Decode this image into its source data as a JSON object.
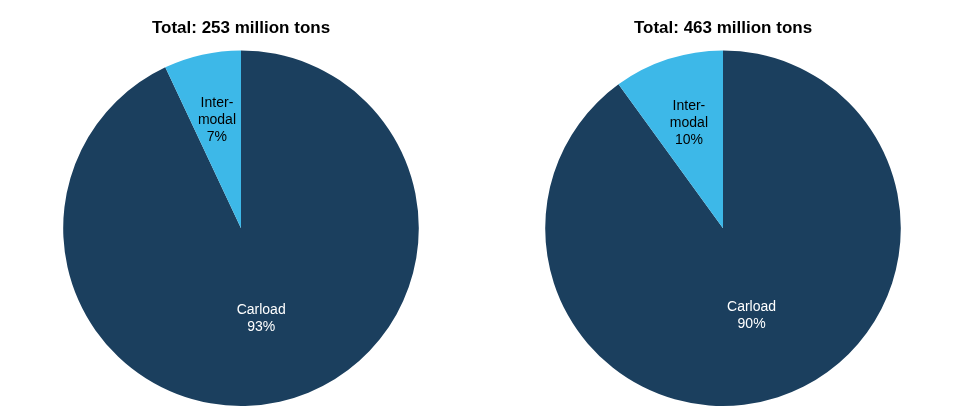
{
  "chart_data": [
    {
      "type": "pie",
      "title": "Total: 253 million tons",
      "values": [
        93,
        7
      ],
      "value_labels": [
        "Carload\n93%",
        "Inter-\nmodal\n7%"
      ],
      "colors": [
        "#1b3f5e",
        "#3db8e8"
      ],
      "data_labels": true
    },
    {
      "type": "pie",
      "title": "Total: 463 million tons",
      "values": [
        90,
        10
      ],
      "value_labels": [
        "Carload\n90%",
        "Inter-\nmodal\n10%"
      ],
      "colors": [
        "#1b3f5e",
        "#3db8e8"
      ],
      "data_labels": true
    }
  ]
}
